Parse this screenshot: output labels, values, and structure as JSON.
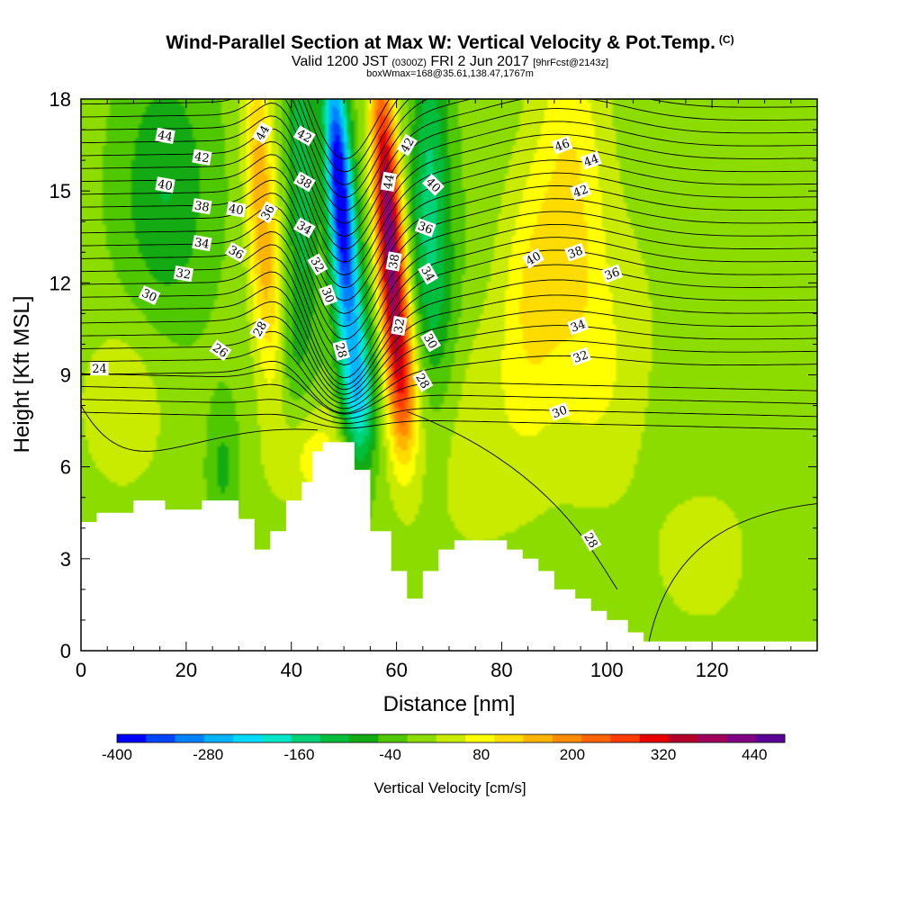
{
  "header": {
    "title": "Wind-Parallel Section at Max W: Vertical Velocity & Pot.Temp.",
    "copyright": "(C)",
    "valid_main_a": "Valid 1200 JST",
    "valid_small_a": "(0300Z)",
    "valid_main_b": "FRI 2 Jun 2017",
    "valid_small_b": "[9hrFcst@2143z]",
    "boxwmax": "boxWmax=168@35.61,138.47,1767m"
  },
  "chart_data": {
    "type": "heatmap",
    "xlabel": "Distance [nm]",
    "ylabel": "Height [Kft MSL]",
    "xlim": [
      0,
      140
    ],
    "ylim": [
      0,
      18
    ],
    "x_ticks": [
      "0",
      "20",
      "40",
      "60",
      "80",
      "100",
      "120"
    ],
    "y_ticks": [
      "0",
      "3",
      "6",
      "9",
      "12",
      "15",
      "18"
    ],
    "colorbar": {
      "label": "Vertical Velocity [cm/s]",
      "tick_labels": [
        "-400",
        "-280",
        "-160",
        "-40",
        "80",
        "200",
        "320",
        "440"
      ],
      "tick_values": [
        -400,
        -280,
        -160,
        -40,
        80,
        200,
        320,
        440
      ],
      "range": [
        -400,
        480
      ],
      "colors": [
        "#0000ff",
        "#0046ff",
        "#0082ff",
        "#00b4ff",
        "#00dcff",
        "#00e6c8",
        "#00d278",
        "#00be3c",
        "#14aa14",
        "#50c800",
        "#8cdc00",
        "#c8eb00",
        "#ffff00",
        "#ffdc00",
        "#ffb400",
        "#ff8c00",
        "#ff6400",
        "#ff3c00",
        "#e60000",
        "#b40028",
        "#a0005a",
        "#820082",
        "#5a0096"
      ]
    },
    "terrain": [
      [
        0,
        4.2
      ],
      [
        3,
        4.2
      ],
      [
        3,
        4.5
      ],
      [
        10,
        4.5
      ],
      [
        10,
        4.9
      ],
      [
        16,
        4.9
      ],
      [
        16,
        4.6
      ],
      [
        23,
        4.6
      ],
      [
        23,
        4.9
      ],
      [
        30,
        4.9
      ],
      [
        30,
        4.3
      ],
      [
        33,
        4.3
      ],
      [
        33,
        3.3
      ],
      [
        36,
        3.3
      ],
      [
        36,
        3.9
      ],
      [
        39,
        3.9
      ],
      [
        39,
        4.9
      ],
      [
        42,
        4.9
      ],
      [
        42,
        5.5
      ],
      [
        44,
        5.5
      ],
      [
        44,
        6.5
      ],
      [
        46,
        6.5
      ],
      [
        46,
        6.8
      ],
      [
        52,
        6.8
      ],
      [
        52,
        5.9
      ],
      [
        55,
        5.9
      ],
      [
        55,
        3.9
      ],
      [
        59,
        3.9
      ],
      [
        59,
        2.6
      ],
      [
        62,
        2.6
      ],
      [
        62,
        1.7
      ],
      [
        65,
        1.7
      ],
      [
        65,
        2.6
      ],
      [
        68,
        2.6
      ],
      [
        68,
        3.3
      ],
      [
        71,
        3.3
      ],
      [
        71,
        3.6
      ],
      [
        81,
        3.6
      ],
      [
        81,
        3.3
      ],
      [
        84,
        3.3
      ],
      [
        84,
        3.0
      ],
      [
        87,
        3.0
      ],
      [
        87,
        2.6
      ],
      [
        90,
        2.6
      ],
      [
        90,
        2.0
      ],
      [
        94,
        2.0
      ],
      [
        94,
        1.7
      ],
      [
        97,
        1.7
      ],
      [
        97,
        1.3
      ],
      [
        100,
        1.3
      ],
      [
        100,
        1.0
      ],
      [
        104,
        1.0
      ],
      [
        104,
        0.6
      ],
      [
        107,
        0.6
      ],
      [
        107,
        0.3
      ],
      [
        140,
        0.3
      ]
    ],
    "velocity_features": [
      {
        "x": 49,
        "y": 15.5,
        "value": -380,
        "sx": 1.6,
        "sy": 2.8,
        "tilt": -0.35
      },
      {
        "x": 51.5,
        "y": 10.5,
        "value": -180,
        "sx": 2.2,
        "sy": 3.0,
        "tilt": -0.35
      },
      {
        "x": 53,
        "y": 8.0,
        "value": -120,
        "sx": 2.5,
        "sy": 1.6,
        "tilt": 0
      },
      {
        "x": 58,
        "y": 15.0,
        "value": 330,
        "sx": 1.7,
        "sy": 3.2,
        "tilt": -0.3
      },
      {
        "x": 60,
        "y": 11.0,
        "value": 230,
        "sx": 1.9,
        "sy": 2.8,
        "tilt": -0.3
      },
      {
        "x": 61.5,
        "y": 8.5,
        "value": 110,
        "sx": 2.2,
        "sy": 1.6,
        "tilt": 0
      },
      {
        "x": 34,
        "y": 15.5,
        "value": 150,
        "sx": 2.0,
        "sy": 3.2,
        "tilt": -0.25
      },
      {
        "x": 36,
        "y": 11.0,
        "value": 80,
        "sx": 2.4,
        "sy": 2.5,
        "tilt": -0.25
      },
      {
        "x": 42,
        "y": 16.0,
        "value": -110,
        "sx": 2.0,
        "sy": 4.0,
        "tilt": -0.2
      },
      {
        "x": 40,
        "y": 10.0,
        "value": -60,
        "sx": 2.0,
        "sy": 2.5,
        "tilt": 0
      },
      {
        "x": 66,
        "y": 15.5,
        "value": -120,
        "sx": 2.5,
        "sy": 3.5,
        "tilt": 0.15
      },
      {
        "x": 68,
        "y": 11.0,
        "value": -80,
        "sx": 3.0,
        "sy": 3.0,
        "tilt": 0.1
      },
      {
        "x": 93,
        "y": 14.5,
        "value": 110,
        "sx": 5.0,
        "sy": 4.5,
        "tilt": 0
      },
      {
        "x": 85,
        "y": 11.5,
        "value": 80,
        "sx": 4.0,
        "sy": 3.0,
        "tilt": 0
      },
      {
        "x": 100,
        "y": 9.0,
        "value": 50,
        "sx": 5.0,
        "sy": 3.0,
        "tilt": 0
      },
      {
        "x": 16,
        "y": 15.0,
        "value": -90,
        "sx": 6.0,
        "sy": 3.0,
        "tilt": 0
      },
      {
        "x": 8,
        "y": 8.0,
        "value": 60,
        "sx": 6.0,
        "sy": 2.0,
        "tilt": 0
      },
      {
        "x": 45,
        "y": 6.3,
        "value": 90,
        "sx": 6.0,
        "sy": 1.3,
        "tilt": 0
      },
      {
        "x": 27,
        "y": 6.0,
        "value": -60,
        "sx": 2.0,
        "sy": 1.5,
        "tilt": 0
      },
      {
        "x": 75,
        "y": 7.0,
        "value": 50,
        "sx": 10.0,
        "sy": 3.0,
        "tilt": 0
      },
      {
        "x": 118,
        "y": 3.0,
        "value": 40,
        "sx": 8.0,
        "sy": 2.0,
        "tilt": 0
      },
      {
        "x": 128,
        "y": 12.0,
        "value": 20,
        "sx": 8.0,
        "sy": 4.0,
        "tilt": 0
      },
      {
        "x": 108,
        "y": 12.0,
        "value": 15,
        "sx": 4.0,
        "sy": 4.0,
        "tilt": 0
      }
    ],
    "theta_labels": [
      {
        "text": "44",
        "x": 16,
        "y": 16.8,
        "angle": 10
      },
      {
        "text": "42",
        "x": 23,
        "y": 16.1,
        "angle": 10
      },
      {
        "text": "40",
        "x": 16,
        "y": 15.2,
        "angle": 10
      },
      {
        "text": "38",
        "x": 23,
        "y": 14.5,
        "angle": 10
      },
      {
        "text": "40",
        "x": 29.5,
        "y": 14.4,
        "angle": 10
      },
      {
        "text": "34",
        "x": 23,
        "y": 13.3,
        "angle": 10
      },
      {
        "text": "36",
        "x": 29.5,
        "y": 13.0,
        "angle": 30
      },
      {
        "text": "32",
        "x": 19.5,
        "y": 12.3,
        "angle": 10
      },
      {
        "text": "30",
        "x": 13,
        "y": 11.6,
        "angle": 25
      },
      {
        "text": "26",
        "x": 26.5,
        "y": 9.8,
        "angle": 35
      },
      {
        "text": "24",
        "x": 3.5,
        "y": 9.2,
        "angle": 0
      },
      {
        "text": "28",
        "x": 34,
        "y": 10.5,
        "angle": -60
      },
      {
        "text": "44",
        "x": 34.5,
        "y": 16.9,
        "angle": -60
      },
      {
        "text": "36",
        "x": 35.5,
        "y": 14.3,
        "angle": -60
      },
      {
        "text": "42",
        "x": 42.5,
        "y": 16.8,
        "angle": 30
      },
      {
        "text": "38",
        "x": 42.5,
        "y": 15.3,
        "angle": 30
      },
      {
        "text": "34",
        "x": 42.5,
        "y": 13.8,
        "angle": 30
      },
      {
        "text": "32",
        "x": 45,
        "y": 12.6,
        "angle": 60
      },
      {
        "text": "30",
        "x": 47,
        "y": 11.6,
        "angle": 70
      },
      {
        "text": "28",
        "x": 49.5,
        "y": 9.8,
        "angle": 75
      },
      {
        "text": "42",
        "x": 62,
        "y": 16.5,
        "angle": -60
      },
      {
        "text": "44",
        "x": 58.5,
        "y": 15.3,
        "angle": -80
      },
      {
        "text": "38",
        "x": 59.5,
        "y": 12.7,
        "angle": -80
      },
      {
        "text": "32",
        "x": 60.5,
        "y": 10.6,
        "angle": -80
      },
      {
        "text": "40",
        "x": 67,
        "y": 15.2,
        "angle": 45
      },
      {
        "text": "36",
        "x": 65.5,
        "y": 13.8,
        "angle": 20
      },
      {
        "text": "34",
        "x": 66,
        "y": 12.3,
        "angle": 60
      },
      {
        "text": "30",
        "x": 66.5,
        "y": 10.1,
        "angle": 60
      },
      {
        "text": "28",
        "x": 65,
        "y": 8.8,
        "angle": 60
      },
      {
        "text": "46",
        "x": 91.5,
        "y": 16.5,
        "angle": -20
      },
      {
        "text": "44",
        "x": 97,
        "y": 16.0,
        "angle": -20
      },
      {
        "text": "42",
        "x": 95,
        "y": 15.0,
        "angle": -20
      },
      {
        "text": "40",
        "x": 86,
        "y": 12.8,
        "angle": -30
      },
      {
        "text": "38",
        "x": 94,
        "y": 13.0,
        "angle": -20
      },
      {
        "text": "36",
        "x": 101,
        "y": 12.3,
        "angle": -20
      },
      {
        "text": "34",
        "x": 94.5,
        "y": 10.6,
        "angle": -20
      },
      {
        "text": "32",
        "x": 95,
        "y": 9.6,
        "angle": -20
      },
      {
        "text": "30",
        "x": 91,
        "y": 7.8,
        "angle": -20
      },
      {
        "text": "28",
        "x": 97,
        "y": 3.6,
        "angle": 60
      }
    ]
  }
}
